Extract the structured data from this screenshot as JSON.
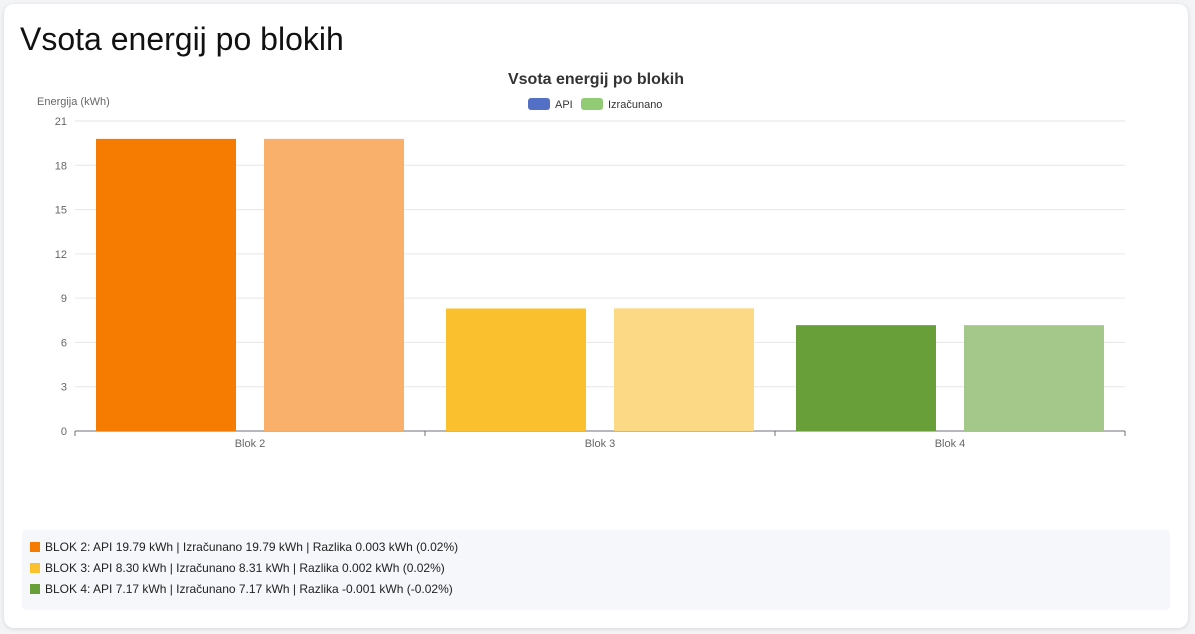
{
  "page": {
    "title": "Vsota energij po blokih"
  },
  "chart_data": {
    "type": "bar",
    "title": "Vsota energij po blokih",
    "ylabel": "Energija (kWh)",
    "xlabel": "",
    "ylim": [
      0,
      21
    ],
    "yticks": [
      0,
      3,
      6,
      9,
      12,
      15,
      18,
      21
    ],
    "grid": true,
    "legend_position": "top-center",
    "categories": [
      "Blok 2",
      "Blok 3",
      "Blok 4"
    ],
    "series": [
      {
        "name": "API",
        "values": [
          19.79,
          8.3,
          7.17
        ],
        "legend_color": "#5470c6"
      },
      {
        "name": "Izračunano",
        "values": [
          19.79,
          8.31,
          7.17
        ],
        "legend_color": "#91cc75"
      }
    ],
    "bar_colors": [
      [
        "#f57c00",
        "#f8b06a"
      ],
      [
        "#fbc02d",
        "#fcd985"
      ],
      [
        "#689f38",
        "#a4c78a"
      ]
    ]
  },
  "summary": [
    {
      "color": "#f57c00",
      "text": "BLOK 2: API 19.79 kWh | Izračunano 19.79 kWh | Razlika 0.003 kWh (0.02%)"
    },
    {
      "color": "#fbc02d",
      "text": "BLOK 3: API 8.30 kWh | Izračunano 8.31 kWh | Razlika 0.002 kWh (0.02%)"
    },
    {
      "color": "#689f38",
      "text": "BLOK 4: API 7.17 kWh | Izračunano 7.17 kWh | Razlika -0.001 kWh (-0.02%)"
    }
  ]
}
